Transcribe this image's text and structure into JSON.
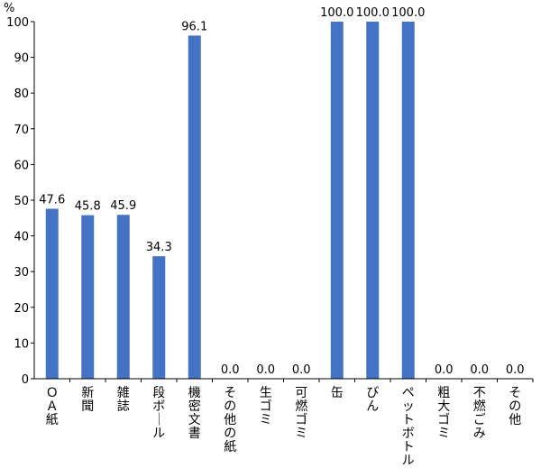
{
  "chart_data": {
    "type": "bar",
    "unit_label": "%",
    "categories": [
      "ＯＡ紙",
      "新聞",
      "雑誌",
      "段ボール",
      "機密文書",
      "その他の紙",
      "生ゴミ",
      "可燃ゴミ",
      "缶",
      "びん",
      "ペットボトル",
      "粗大ゴミ",
      "不燃ごみ",
      "その他"
    ],
    "values": [
      47.6,
      45.8,
      45.9,
      34.3,
      96.1,
      0.0,
      0.0,
      0.0,
      100.0,
      100.0,
      100.0,
      0.0,
      0.0,
      0.0
    ],
    "data_labels": [
      "47.6",
      "45.8",
      "45.9",
      "34.3",
      "96.1",
      "0.0",
      "0.0",
      "0.0",
      "100.0",
      "100.0",
      "100.0",
      "0.0",
      "0.0",
      "0.0"
    ],
    "ylim": [
      0,
      100
    ],
    "yticks": [
      0,
      10,
      20,
      30,
      40,
      50,
      60,
      70,
      80,
      90,
      100
    ],
    "bar_color": "#4472C4",
    "grid": false,
    "legend": "none"
  }
}
